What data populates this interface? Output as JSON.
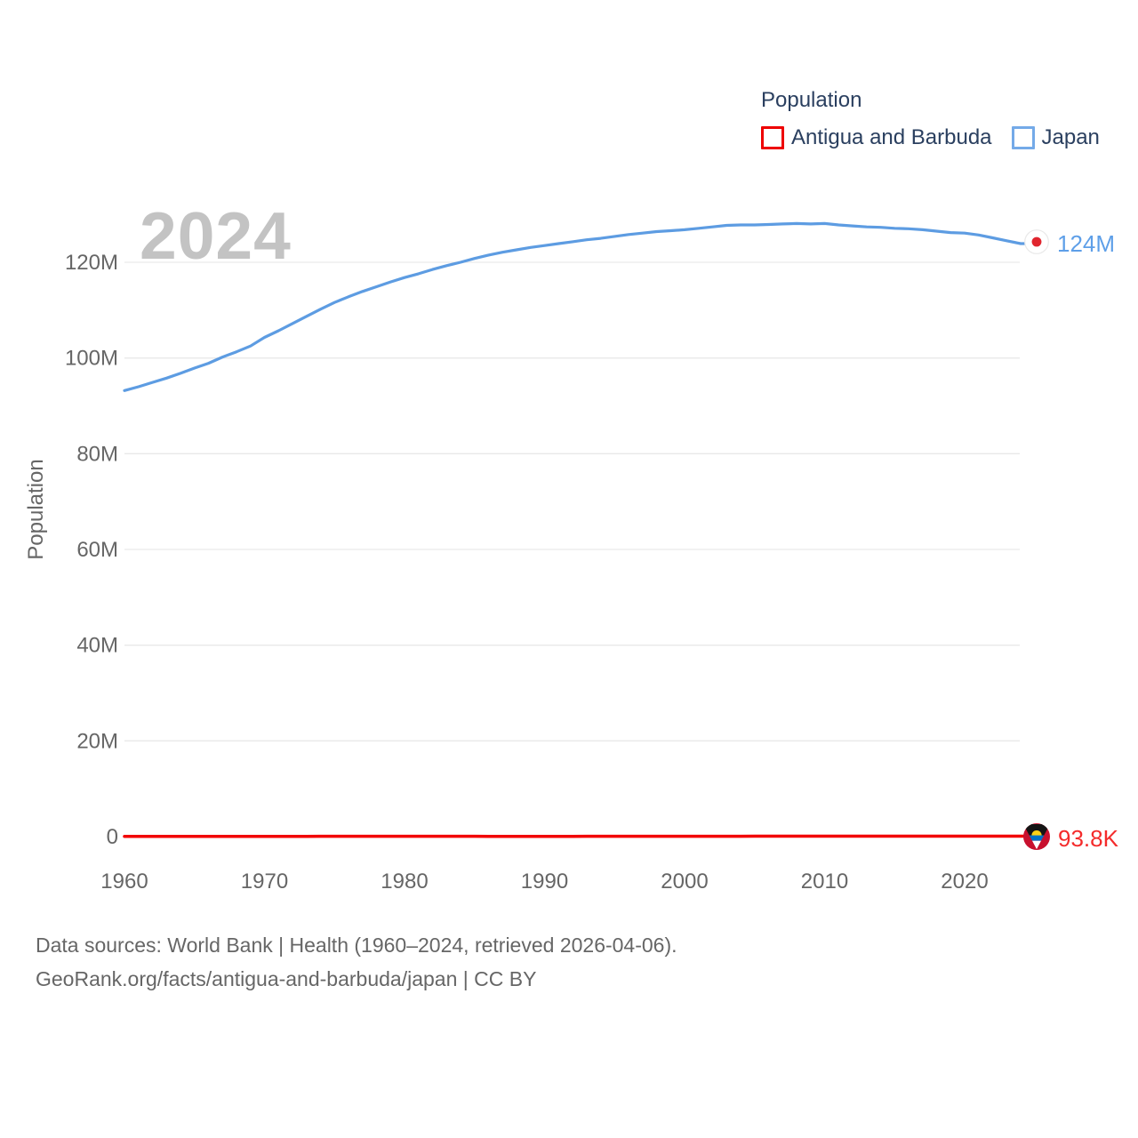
{
  "legend": {
    "title": "Population",
    "items": [
      {
        "label": "Antigua and Barbuda",
        "color": "#ee0000"
      },
      {
        "label": "Japan",
        "color": "#74aae8"
      }
    ]
  },
  "watermark": "2024",
  "y_axis_title": "Population",
  "footer": {
    "line1": "Data sources: World Bank | Health (1960–2024, retrieved 2026-04-06).",
    "line2": "GeoRank.org/facts/antigua-and-barbuda/japan | CC BY"
  },
  "chart_data": {
    "type": "line",
    "title": "Population",
    "xlabel": "",
    "ylabel": "Population",
    "xlim": [
      1960,
      2024
    ],
    "ylim": [
      0,
      133000000
    ],
    "grid": true,
    "legend_position": "top-right",
    "x_ticks": [
      1960,
      1970,
      1980,
      1990,
      2000,
      2010,
      2020
    ],
    "y_ticks": [
      "0",
      "20M",
      "40M",
      "60M",
      "80M",
      "100M",
      "120M"
    ],
    "years": [
      1960,
      1961,
      1962,
      1963,
      1964,
      1965,
      1966,
      1967,
      1968,
      1969,
      1970,
      1971,
      1972,
      1973,
      1974,
      1975,
      1976,
      1977,
      1978,
      1979,
      1980,
      1981,
      1982,
      1983,
      1984,
      1985,
      1986,
      1987,
      1988,
      1989,
      1990,
      1991,
      1992,
      1993,
      1994,
      1995,
      1996,
      1997,
      1998,
      1999,
      2000,
      2001,
      2002,
      2003,
      2004,
      2005,
      2006,
      2007,
      2008,
      2009,
      2010,
      2011,
      2012,
      2013,
      2014,
      2015,
      2016,
      2017,
      2018,
      2019,
      2020,
      2021,
      2022,
      2023,
      2024
    ],
    "series": [
      {
        "name": "Antigua and Barbuda",
        "color": "#f20000",
        "unit": "thousands",
        "end_label": "93.8K",
        "values": [
          54.7,
          55.6,
          56.5,
          57.3,
          58.1,
          58.9,
          59.6,
          60.3,
          61.0,
          61.8,
          62.5,
          63.3,
          64.0,
          64.6,
          65.1,
          65.5,
          65.8,
          66.0,
          66.2,
          66.4,
          66.6,
          66.5,
          66.3,
          66.0,
          65.6,
          65.1,
          64.7,
          64.3,
          64.0,
          63.8,
          63.6,
          63.9,
          64.8,
          66.1,
          67.7,
          69.5,
          71.2,
          72.9,
          74.6,
          76.2,
          77.6,
          79.0,
          80.4,
          81.8,
          83.0,
          84.0,
          84.9,
          85.8,
          86.6,
          87.4,
          88.0,
          88.6,
          89.2,
          89.8,
          90.4,
          91.0,
          91.5,
          92.0,
          92.4,
          92.8,
          93.0,
          93.2,
          93.4,
          93.6,
          93.8
        ]
      },
      {
        "name": "Japan",
        "color": "#5d9ce2",
        "unit": "millions",
        "end_label": "124M",
        "values": [
          93.2,
          94.0,
          94.9,
          95.8,
          96.8,
          97.9,
          98.9,
          100.2,
          101.3,
          102.5,
          104.3,
          105.7,
          107.2,
          108.7,
          110.2,
          111.6,
          112.8,
          113.9,
          114.9,
          115.9,
          116.8,
          117.6,
          118.5,
          119.3,
          120.0,
          120.8,
          121.5,
          122.1,
          122.6,
          123.1,
          123.5,
          123.9,
          124.3,
          124.7,
          125.0,
          125.4,
          125.8,
          126.1,
          126.4,
          126.6,
          126.8,
          127.1,
          127.4,
          127.7,
          127.8,
          127.8,
          127.9,
          128.0,
          128.1,
          128.0,
          128.1,
          127.8,
          127.6,
          127.4,
          127.3,
          127.1,
          127.0,
          126.8,
          126.5,
          126.2,
          126.1,
          125.7,
          125.1,
          124.5,
          123.9
        ]
      }
    ]
  }
}
